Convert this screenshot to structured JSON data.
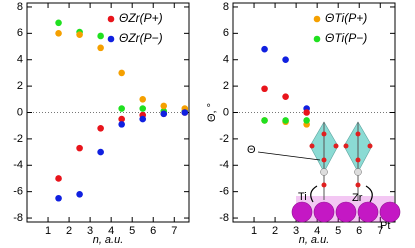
{
  "chart_data": [
    {
      "type": "scatter",
      "xlabel": "n, a.u.",
      "x": [
        1.5,
        2.5,
        3.5,
        4.5,
        5.5,
        6.5,
        7.5
      ],
      "series": [
        {
          "color": "#20e020",
          "values": [
            6.8,
            6.1,
            5.8,
            0.3,
            0.3,
            0.1,
            0.1
          ]
        },
        {
          "color": "#f5a000",
          "values": [
            6.0,
            5.9,
            4.9,
            3.0,
            1.0,
            0.5,
            0.3
          ]
        },
        {
          "name": "ΘZr(P+)",
          "color": "#e8141b",
          "values": [
            -5.0,
            -2.7,
            -1.2,
            -0.5,
            -0.2,
            -0.1,
            0.0
          ]
        },
        {
          "name": "ΘZr(P−)",
          "color": "#1020e0",
          "values": [
            -6.5,
            -6.2,
            -3.0,
            -0.9,
            -0.5,
            -0.1,
            0.0
          ]
        }
      ],
      "xlim": [
        0,
        7.7
      ],
      "ylim": [
        -8.3,
        8.3
      ],
      "xticks": [
        1,
        2,
        3,
        4,
        5,
        6,
        7
      ],
      "yticks": [
        -8,
        -6,
        -4,
        -2,
        0,
        2,
        4,
        6,
        8
      ],
      "zero_line": true,
      "legend": "upper right"
    },
    {
      "type": "scatter",
      "xlabel": "n, a.u.",
      "ylabel": "Θ, °",
      "x": [
        1.5,
        2.5,
        3.5
      ],
      "series": [
        {
          "color": "#1020e0",
          "values": [
            4.8,
            4.0,
            0.3
          ]
        },
        {
          "color": "#e8141b",
          "values": [
            1.8,
            1.2,
            0.0
          ]
        },
        {
          "name": "ΘTi(P+)",
          "color": "#f5a000",
          "values": [
            -0.6,
            -0.7,
            -0.9
          ]
        },
        {
          "name": "ΘTi(P−)",
          "color": "#20e020",
          "values": [
            -0.6,
            -0.6,
            -0.6
          ]
        }
      ],
      "xlim": [
        0,
        7.7
      ],
      "ylim": [
        -8.3,
        8.3
      ],
      "xticks": [
        1,
        2,
        3,
        4,
        5,
        6,
        7
      ],
      "yticks": [
        -8,
        -6,
        -4,
        -2,
        0,
        2,
        4,
        6,
        8
      ],
      "zero_line": true,
      "legend": "upper right",
      "annotations": [
        "Θ",
        "Ti",
        "Zr",
        "Pt"
      ]
    }
  ]
}
